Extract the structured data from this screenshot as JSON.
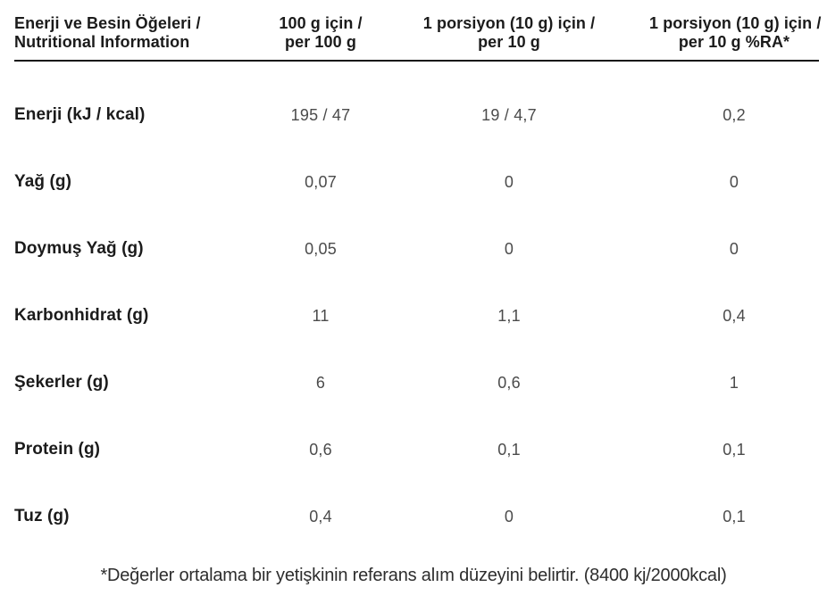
{
  "table": {
    "headers": [
      {
        "line1": "Enerji ve Besin Öğeleri /",
        "line2": "Nutritional Information"
      },
      {
        "line1": "100 g için /",
        "line2": "per 100 g"
      },
      {
        "line1": "1 porsiyon (10 g) için /",
        "line2": "per 10 g"
      },
      {
        "line1": "1 porsiyon (10 g) için /",
        "line2": "per 10 g %RA*"
      }
    ],
    "rows": [
      {
        "label": "Enerji (kJ / kcal)",
        "per_100g": "195 / 47",
        "per_portion": "19 / 4,7",
        "percent_ra": "0,2"
      },
      {
        "label": "Yağ (g)",
        "per_100g": "0,07",
        "per_portion": "0",
        "percent_ra": "0"
      },
      {
        "label": "Doymuş Yağ (g)",
        "per_100g": "0,05",
        "per_portion": "0",
        "percent_ra": "0"
      },
      {
        "label": "Karbonhidrat (g)",
        "per_100g": "11",
        "per_portion": "1,1",
        "percent_ra": "0,4"
      },
      {
        "label": "Şekerler (g)",
        "per_100g": "6",
        "per_portion": "0,6",
        "percent_ra": "1"
      },
      {
        "label": "Protein (g)",
        "per_100g": "0,6",
        "per_portion": "0,1",
        "percent_ra": "0,1"
      },
      {
        "label": "Tuz (g)",
        "per_100g": "0,4",
        "per_portion": "0",
        "percent_ra": "0,1"
      }
    ],
    "footnote": "*Değerler ortalama bir yetişkinin referans alım düzeyini belirtir. (8400 kj/2000kcal)"
  },
  "colors": {
    "text_primary": "#1b1b1b",
    "text_value": "#4b4b4b",
    "header_rule": "#161616",
    "background": "#ffffff"
  }
}
